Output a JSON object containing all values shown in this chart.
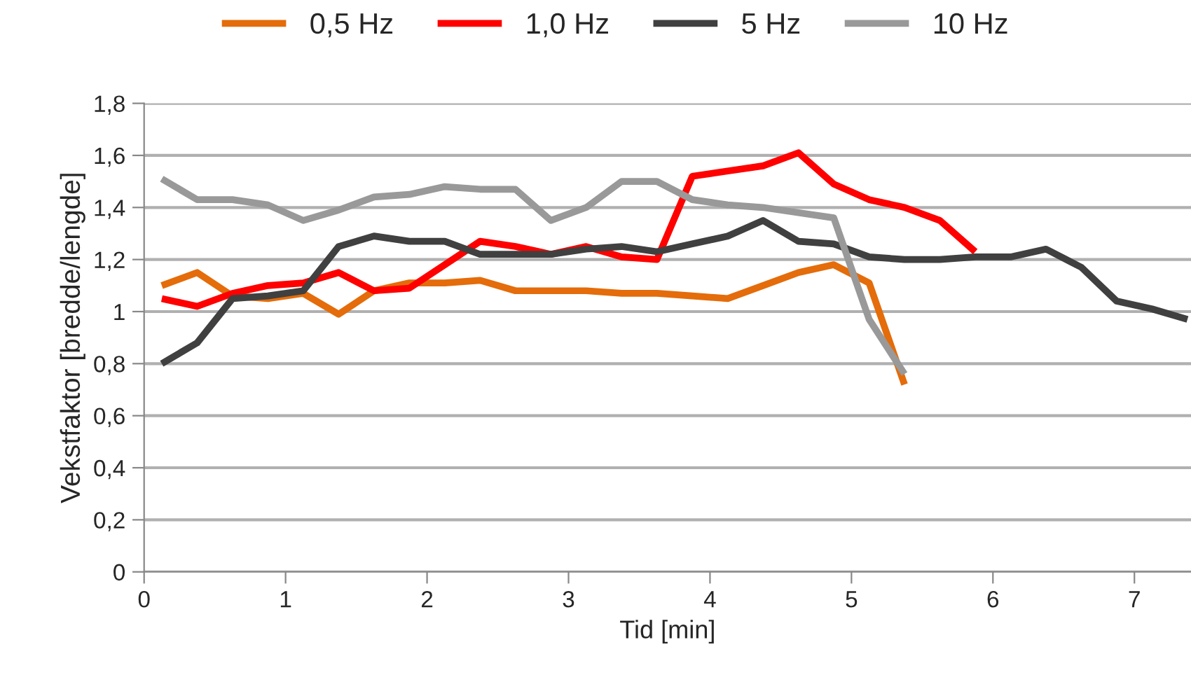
{
  "chart_data": {
    "type": "line",
    "xlabel": "Tid [min]",
    "ylabel": "Vekstfaktor [bredde/lengde]",
    "xlim": [
      0,
      7.4
    ],
    "xticks": [
      0,
      1,
      2,
      3,
      4,
      5,
      6,
      7
    ],
    "ylim": [
      0,
      1.8
    ],
    "yticks": [
      0,
      {
        "value": 0.2,
        "label": "0,2"
      },
      {
        "value": 0.4,
        "label": "0,4"
      },
      {
        "value": 0.6,
        "label": "0,6"
      },
      {
        "value": 0.8,
        "label": "0,8"
      },
      1,
      {
        "value": 1.2,
        "label": "1,2"
      },
      {
        "value": 1.4,
        "label": "1,4"
      },
      {
        "value": 1.6,
        "label": "1,6"
      },
      {
        "value": 1.8,
        "label": "1,8"
      }
    ],
    "grid": "y",
    "legend": "top",
    "line_style": "solid",
    "marker": "none",
    "x": [
      0.125,
      0.375,
      0.625,
      0.875,
      1.125,
      1.375,
      1.625,
      1.875,
      2.125,
      2.375,
      2.625,
      2.875,
      3.125,
      3.375,
      3.625,
      3.875,
      4.125,
      4.375,
      4.625,
      4.875,
      5.125,
      5.375,
      5.625,
      5.875,
      6.125,
      6.375,
      6.625,
      6.875,
      7.125,
      7.375
    ],
    "series": [
      {
        "name": "0,5 Hz",
        "color": "#e46c0a",
        "values": [
          1.1,
          1.15,
          1.06,
          1.05,
          1.07,
          0.99,
          1.08,
          1.11,
          1.11,
          1.12,
          1.08,
          1.08,
          1.08,
          1.07,
          1.07,
          1.06,
          1.05,
          1.1,
          1.15,
          1.18,
          1.11,
          0.72,
          null,
          null,
          null,
          null,
          null,
          null,
          null,
          null
        ]
      },
      {
        "name": "1,0 Hz",
        "color": "#ff0000",
        "values": [
          1.05,
          1.02,
          1.07,
          1.1,
          1.11,
          1.15,
          1.08,
          1.09,
          1.18,
          1.27,
          1.25,
          1.22,
          1.25,
          1.21,
          1.2,
          1.52,
          1.54,
          1.56,
          1.61,
          1.49,
          1.43,
          1.4,
          1.35,
          1.23,
          null,
          null,
          null,
          null,
          null,
          null
        ]
      },
      {
        "name": "5 Hz",
        "color": "#404040",
        "values": [
          0.8,
          0.88,
          1.05,
          1.06,
          1.08,
          1.25,
          1.29,
          1.27,
          1.27,
          1.22,
          1.22,
          1.22,
          1.24,
          1.25,
          1.23,
          1.26,
          1.29,
          1.35,
          1.27,
          1.26,
          1.21,
          1.2,
          1.2,
          1.21,
          1.21,
          1.24,
          1.17,
          1.04,
          1.01,
          0.97
        ]
      },
      {
        "name": "10 Hz",
        "color": "#999999",
        "values": [
          1.51,
          1.43,
          1.43,
          1.41,
          1.35,
          1.39,
          1.44,
          1.45,
          1.48,
          1.47,
          1.47,
          1.35,
          1.4,
          1.5,
          1.5,
          1.43,
          1.41,
          1.4,
          1.38,
          1.36,
          0.97,
          0.76,
          null,
          null,
          null,
          null,
          null,
          null,
          null,
          null
        ]
      }
    ]
  }
}
